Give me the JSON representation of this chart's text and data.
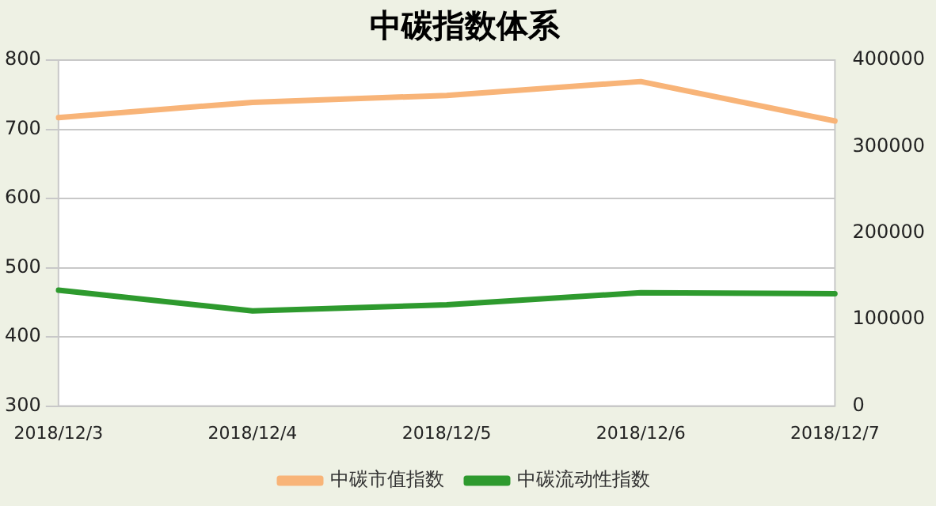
{
  "chart_data": {
    "type": "line",
    "title": "中碳指数体系",
    "categories": [
      "2018/12/3",
      "2018/12/4",
      "2018/12/5",
      "2018/12/6",
      "2018/12/7"
    ],
    "series": [
      {
        "name": "中碳市值指数",
        "color": "#f8b478",
        "values": [
          717,
          739,
          749,
          769,
          712
        ]
      },
      {
        "name": "中碳流动性指数",
        "color": "#2e9a2e",
        "axis": "y2",
        "values": [
          134000,
          110000,
          117000,
          131000,
          130000
        ]
      }
    ],
    "ylim": [
      300,
      800
    ],
    "yticks": [
      300,
      400,
      500,
      600,
      700,
      800
    ],
    "y2lim": [
      0,
      400000
    ],
    "y2ticks": [
      0,
      100000,
      200000,
      300000,
      400000
    ],
    "grid": "y",
    "legend": "bottom",
    "marker": "none",
    "line_style": "solid"
  }
}
